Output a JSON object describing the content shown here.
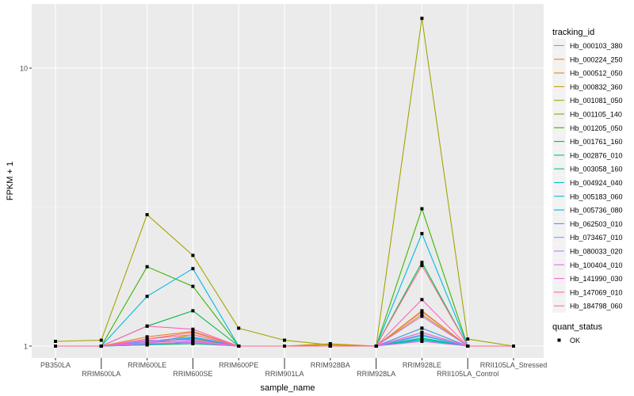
{
  "chart_data": {
    "type": "line",
    "title": "",
    "xlabel": "sample_name",
    "ylabel": "FPKM + 1",
    "yscale": "log10",
    "ylim": [
      0.97,
      16.5
    ],
    "yticks": [
      1,
      10
    ],
    "ytick_labels": [
      "1",
      "10"
    ],
    "categories": [
      "PB350LA",
      "RRIM600LA",
      "RRIM600LE",
      "RRIM600SE",
      "RRIM600PE",
      "RRIM901LA",
      "RRIM928BA",
      "RRIM928LA",
      "RRIM928LE",
      "RRII105LA_Control",
      "RRII105LA_Stressed"
    ],
    "legend_title": "tracking_id",
    "legend_position": "right",
    "shape_legend": {
      "title": "quant_status",
      "items": [
        "OK"
      ]
    },
    "series": [
      {
        "name": "Hb_000103_380",
        "color": "#F8766D",
        "values": [
          1,
          1,
          1.06,
          1.12,
          1,
          1,
          1,
          1,
          1.33,
          1,
          1
        ]
      },
      {
        "name": "Hb_000224_250",
        "color": "#EA8331",
        "values": [
          1,
          1,
          1.08,
          1.13,
          1,
          1,
          1,
          1,
          1.34,
          1,
          1
        ]
      },
      {
        "name": "Hb_000512_050",
        "color": "#D89000",
        "values": [
          1,
          1,
          1.02,
          1.1,
          1,
          1,
          1.02,
          1,
          1.3,
          1,
          1
        ]
      },
      {
        "name": "Hb_000832_360",
        "color": "#C09B00",
        "values": [
          1,
          1,
          1.03,
          1.06,
          1,
          1,
          1.01,
          1,
          1.16,
          1,
          1
        ]
      },
      {
        "name": "Hb_001081_050",
        "color": "#A3A500",
        "values": [
          1.04,
          1.05,
          2.97,
          2.12,
          1.16,
          1.05,
          1.01,
          1,
          15.1,
          1.06,
          1
        ]
      },
      {
        "name": "Hb_001105_140",
        "color": "#7CAE00",
        "values": [
          1,
          1,
          1.01,
          1.03,
          1,
          1,
          1,
          1,
          1.12,
          1,
          1
        ]
      },
      {
        "name": "Hb_001205_050",
        "color": "#39B600",
        "values": [
          1,
          1,
          1.93,
          1.64,
          1,
          1,
          1,
          1,
          3.12,
          1,
          1
        ]
      },
      {
        "name": "Hb_001761_160",
        "color": "#00BB4E",
        "values": [
          1,
          1,
          1.18,
          1.34,
          1,
          1,
          1,
          1,
          2.0,
          1,
          1
        ]
      },
      {
        "name": "Hb_002876_010",
        "color": "#00BF7D",
        "values": [
          1,
          1,
          1.01,
          1.02,
          1,
          1,
          1,
          1,
          1.07,
          1,
          1
        ]
      },
      {
        "name": "Hb_003058_160",
        "color": "#00C1A3",
        "values": [
          1,
          1,
          1.02,
          1.03,
          1,
          1,
          1,
          1,
          1.06,
          1,
          1
        ]
      },
      {
        "name": "Hb_004924_040",
        "color": "#00BFC4",
        "values": [
          1,
          1,
          1.01,
          1.04,
          1,
          1,
          1,
          1,
          1.05,
          1,
          1
        ]
      },
      {
        "name": "Hb_005183_060",
        "color": "#00BAE0",
        "values": [
          1,
          1,
          1.51,
          1.9,
          1,
          1,
          1,
          1,
          2.54,
          1,
          1
        ]
      },
      {
        "name": "Hb_005736_080",
        "color": "#00B0F6",
        "values": [
          1,
          1,
          1.03,
          1.07,
          1,
          1,
          1,
          1,
          1.09,
          1,
          1
        ]
      },
      {
        "name": "Hb_062503_010",
        "color": "#35A2FF",
        "values": [
          1,
          1,
          1.04,
          1.08,
          1,
          1,
          1,
          1,
          1.16,
          1,
          1
        ]
      },
      {
        "name": "Hb_073467_010",
        "color": "#9590FF",
        "values": [
          1,
          1,
          1.02,
          1.03,
          1,
          1,
          1,
          1,
          1.1,
          1,
          1
        ]
      },
      {
        "name": "Hb_080033_020",
        "color": "#C77CFF",
        "values": [
          1,
          1,
          1.05,
          1.05,
          1,
          1,
          1,
          1,
          1.28,
          1,
          1
        ]
      },
      {
        "name": "Hb_100404_010",
        "color": "#E76BF3",
        "values": [
          1,
          1,
          1.02,
          1.03,
          1,
          1,
          1,
          1,
          1.04,
          1,
          1
        ]
      },
      {
        "name": "Hb_141990_030",
        "color": "#FA62DB",
        "values": [
          1,
          1,
          1.03,
          1.04,
          1,
          1,
          1,
          1,
          1.12,
          1,
          1
        ]
      },
      {
        "name": "Hb_147069_010",
        "color": "#FF62BC",
        "values": [
          1,
          1,
          1.18,
          1.15,
          1,
          1,
          1,
          1,
          1.47,
          1,
          1
        ]
      },
      {
        "name": "Hb_184798_060",
        "color": "#FF6C91",
        "values": [
          1,
          1,
          1.06,
          1.1,
          1,
          1,
          1,
          1,
          1.95,
          1,
          1
        ]
      }
    ]
  }
}
